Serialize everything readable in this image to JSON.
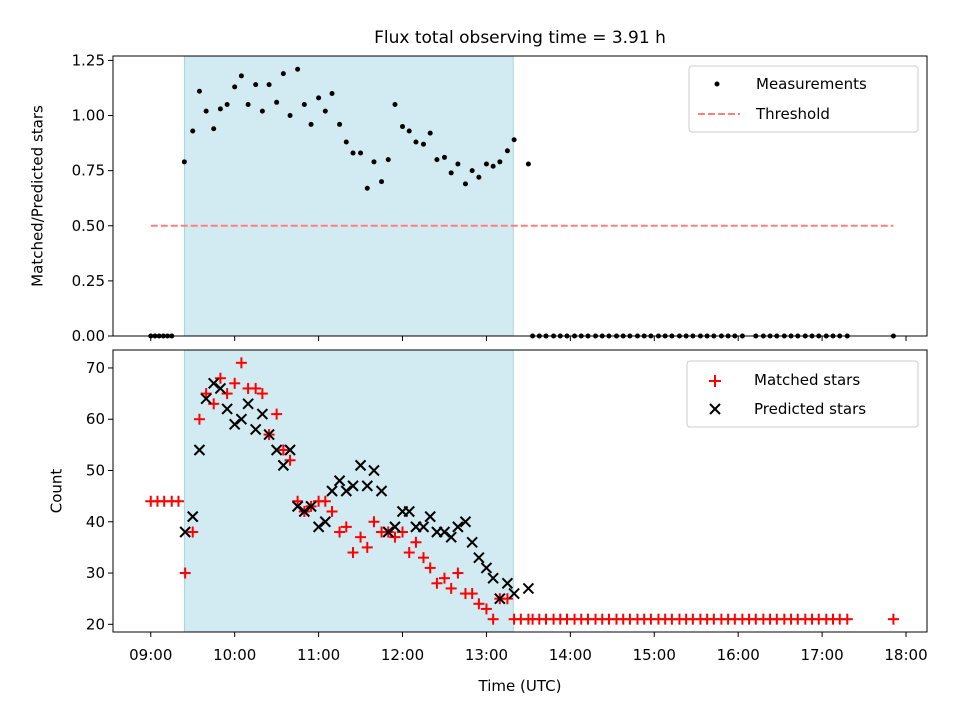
{
  "title": "Flux total observing time = 3.91 h",
  "colors": {
    "shade": "#add8e6",
    "measurement": "#000000",
    "threshold": "#ff7f7f",
    "matched": "#ff0000",
    "predicted": "#000000"
  },
  "chart_data": [
    {
      "type": "scatter",
      "ylabel": "Matched/Predicted stars",
      "xlabel": "",
      "xlim": [
        8.55,
        18.25
      ],
      "ylim": [
        0,
        1.27
      ],
      "yticks": [
        0,
        0.25,
        0.5,
        0.75,
        1.0,
        1.25
      ],
      "ytick_labels": [
        "0.00",
        "0.25",
        "0.50",
        "0.75",
        "1.00",
        "1.25"
      ],
      "shaded_span": [
        9.4,
        13.32
      ],
      "legend": {
        "position": "top-right",
        "items": [
          {
            "label": "Measurements",
            "marker": "dot"
          },
          {
            "label": "Threshold",
            "marker": "dashed-line"
          }
        ]
      },
      "threshold": {
        "name": "Threshold",
        "y": 0.5,
        "x": [
          9.0,
          17.85
        ]
      },
      "series": [
        {
          "name": "Measurements",
          "x": [
            9.0,
            9.05,
            9.1,
            9.15,
            9.2,
            9.25,
            9.4,
            9.5,
            9.58,
            9.66,
            9.75,
            9.83,
            9.91,
            10.0,
            10.08,
            10.16,
            10.25,
            10.33,
            10.41,
            10.5,
            10.58,
            10.66,
            10.75,
            10.83,
            10.91,
            11.0,
            11.08,
            11.16,
            11.25,
            11.33,
            11.41,
            11.5,
            11.58,
            11.66,
            11.75,
            11.83,
            11.91,
            12.0,
            12.08,
            12.16,
            12.25,
            12.33,
            12.41,
            12.5,
            12.58,
            12.66,
            12.75,
            12.83,
            12.91,
            13.0,
            13.08,
            13.16,
            13.25,
            13.33,
            13.5,
            13.55,
            13.63,
            13.71,
            13.8,
            13.88,
            13.96,
            14.05,
            14.13,
            14.21,
            14.3,
            14.38,
            14.46,
            14.55,
            14.63,
            14.71,
            14.8,
            14.88,
            14.96,
            15.05,
            15.13,
            15.21,
            15.3,
            15.38,
            15.46,
            15.55,
            15.63,
            15.71,
            15.8,
            15.88,
            15.96,
            16.05,
            16.21,
            16.3,
            16.38,
            16.46,
            16.55,
            16.63,
            16.71,
            16.8,
            16.88,
            16.96,
            17.05,
            17.13,
            17.21,
            17.3,
            17.85
          ],
          "y": [
            0,
            0,
            0,
            0,
            0,
            0,
            0.79,
            0.93,
            1.11,
            1.02,
            0.94,
            1.03,
            1.05,
            1.13,
            1.18,
            1.05,
            1.14,
            1.02,
            1.14,
            1.06,
            1.19,
            1.0,
            1.21,
            1.05,
            0.96,
            1.08,
            1.02,
            1.1,
            0.96,
            0.88,
            0.83,
            0.83,
            0.67,
            0.79,
            0.7,
            0.8,
            1.05,
            0.95,
            0.93,
            0.88,
            0.87,
            0.92,
            0.8,
            0.81,
            0.74,
            0.78,
            0.69,
            0.75,
            0.72,
            0.78,
            0.77,
            0.79,
            0.84,
            0.89,
            0.78,
            0,
            0,
            0,
            0,
            0,
            0,
            0,
            0,
            0,
            0,
            0,
            0,
            0,
            0,
            0,
            0,
            0,
            0,
            0,
            0,
            0,
            0,
            0,
            0,
            0,
            0,
            0,
            0,
            0,
            0,
            0,
            0,
            0,
            0,
            0,
            0,
            0,
            0,
            0,
            0,
            0,
            0,
            0,
            0,
            0,
            0
          ]
        }
      ]
    },
    {
      "type": "scatter",
      "ylabel": "Count",
      "xlabel": "Time (UTC)",
      "xlim": [
        8.55,
        18.25
      ],
      "ylim": [
        18.5,
        73.5
      ],
      "yticks": [
        20,
        30,
        40,
        50,
        60,
        70
      ],
      "ytick_labels": [
        "20",
        "30",
        "40",
        "50",
        "60",
        "70"
      ],
      "xticks": [
        9,
        10,
        11,
        12,
        13,
        14,
        15,
        16,
        17,
        18
      ],
      "xtick_labels": [
        "09:00",
        "10:00",
        "11:00",
        "12:00",
        "13:00",
        "14:00",
        "15:00",
        "16:00",
        "17:00",
        "18:00"
      ],
      "shaded_span": [
        9.4,
        13.32
      ],
      "legend": {
        "position": "top-right",
        "items": [
          {
            "label": "Matched stars",
            "marker": "plus"
          },
          {
            "label": "Predicted stars",
            "marker": "x"
          }
        ]
      },
      "series": [
        {
          "name": "Matched stars",
          "marker": "plus",
          "x": [
            9.0,
            9.08,
            9.16,
            9.25,
            9.33,
            9.41,
            9.5,
            9.58,
            9.66,
            9.75,
            9.83,
            9.91,
            10.0,
            10.08,
            10.16,
            10.25,
            10.33,
            10.41,
            10.5,
            10.58,
            10.66,
            10.75,
            10.83,
            10.91,
            11.0,
            11.08,
            11.16,
            11.25,
            11.33,
            11.41,
            11.5,
            11.58,
            11.66,
            11.75,
            11.83,
            11.91,
            12.0,
            12.08,
            12.16,
            12.25,
            12.33,
            12.41,
            12.5,
            12.58,
            12.66,
            12.75,
            12.83,
            12.91,
            13.0,
            13.08,
            13.16,
            13.25,
            13.33,
            13.41,
            13.5,
            13.55,
            13.63,
            13.71,
            13.8,
            13.88,
            13.96,
            14.05,
            14.13,
            14.21,
            14.3,
            14.38,
            14.46,
            14.55,
            14.63,
            14.71,
            14.8,
            14.88,
            14.96,
            15.05,
            15.13,
            15.21,
            15.3,
            15.38,
            15.46,
            15.55,
            15.63,
            15.71,
            15.8,
            15.88,
            15.96,
            16.05,
            16.13,
            16.21,
            16.3,
            16.38,
            16.46,
            16.55,
            16.63,
            16.71,
            16.8,
            16.88,
            16.96,
            17.05,
            17.13,
            17.21,
            17.3,
            17.85
          ],
          "y": [
            44,
            44,
            44,
            44,
            44,
            30,
            38,
            60,
            65,
            63,
            68,
            65,
            67,
            71,
            66,
            66,
            65,
            57,
            61,
            54,
            52,
            44,
            42,
            43,
            44,
            44,
            42,
            38,
            39,
            34,
            37,
            35,
            40,
            38,
            38,
            37,
            38,
            34,
            36,
            33,
            31,
            28,
            29,
            27,
            30,
            26,
            26,
            24,
            23,
            21,
            25,
            25,
            21,
            21,
            21,
            21,
            21,
            21,
            21,
            21,
            21,
            21,
            21,
            21,
            21,
            21,
            21,
            21,
            21,
            21,
            21,
            21,
            21,
            21,
            21,
            21,
            21,
            21,
            21,
            21,
            21,
            21,
            21,
            21,
            21,
            21,
            21,
            21,
            21,
            21,
            21,
            21,
            21,
            21,
            21,
            21,
            21,
            21,
            21,
            21,
            21,
            21
          ]
        },
        {
          "name": "Predicted stars",
          "marker": "x",
          "x": [
            9.41,
            9.5,
            9.58,
            9.66,
            9.75,
            9.83,
            9.91,
            10.0,
            10.08,
            10.16,
            10.25,
            10.33,
            10.41,
            10.5,
            10.58,
            10.66,
            10.75,
            10.83,
            10.91,
            11.0,
            11.08,
            11.16,
            11.25,
            11.33,
            11.41,
            11.5,
            11.58,
            11.66,
            11.75,
            11.83,
            11.91,
            12.0,
            12.08,
            12.16,
            12.25,
            12.33,
            12.41,
            12.5,
            12.58,
            12.66,
            12.75,
            12.83,
            12.91,
            13.0,
            13.08,
            13.16,
            13.25,
            13.33,
            13.5
          ],
          "y": [
            38,
            41,
            54,
            64,
            67,
            66,
            62,
            59,
            60,
            63,
            58,
            61,
            57,
            54,
            51,
            54,
            43,
            42,
            43,
            39,
            40,
            46,
            48,
            46,
            47,
            51,
            47,
            50,
            46,
            38,
            39,
            42,
            42,
            39,
            39,
            41,
            38,
            38,
            37,
            39,
            40,
            36,
            33,
            31,
            29,
            25,
            28,
            26,
            27
          ]
        }
      ]
    }
  ]
}
